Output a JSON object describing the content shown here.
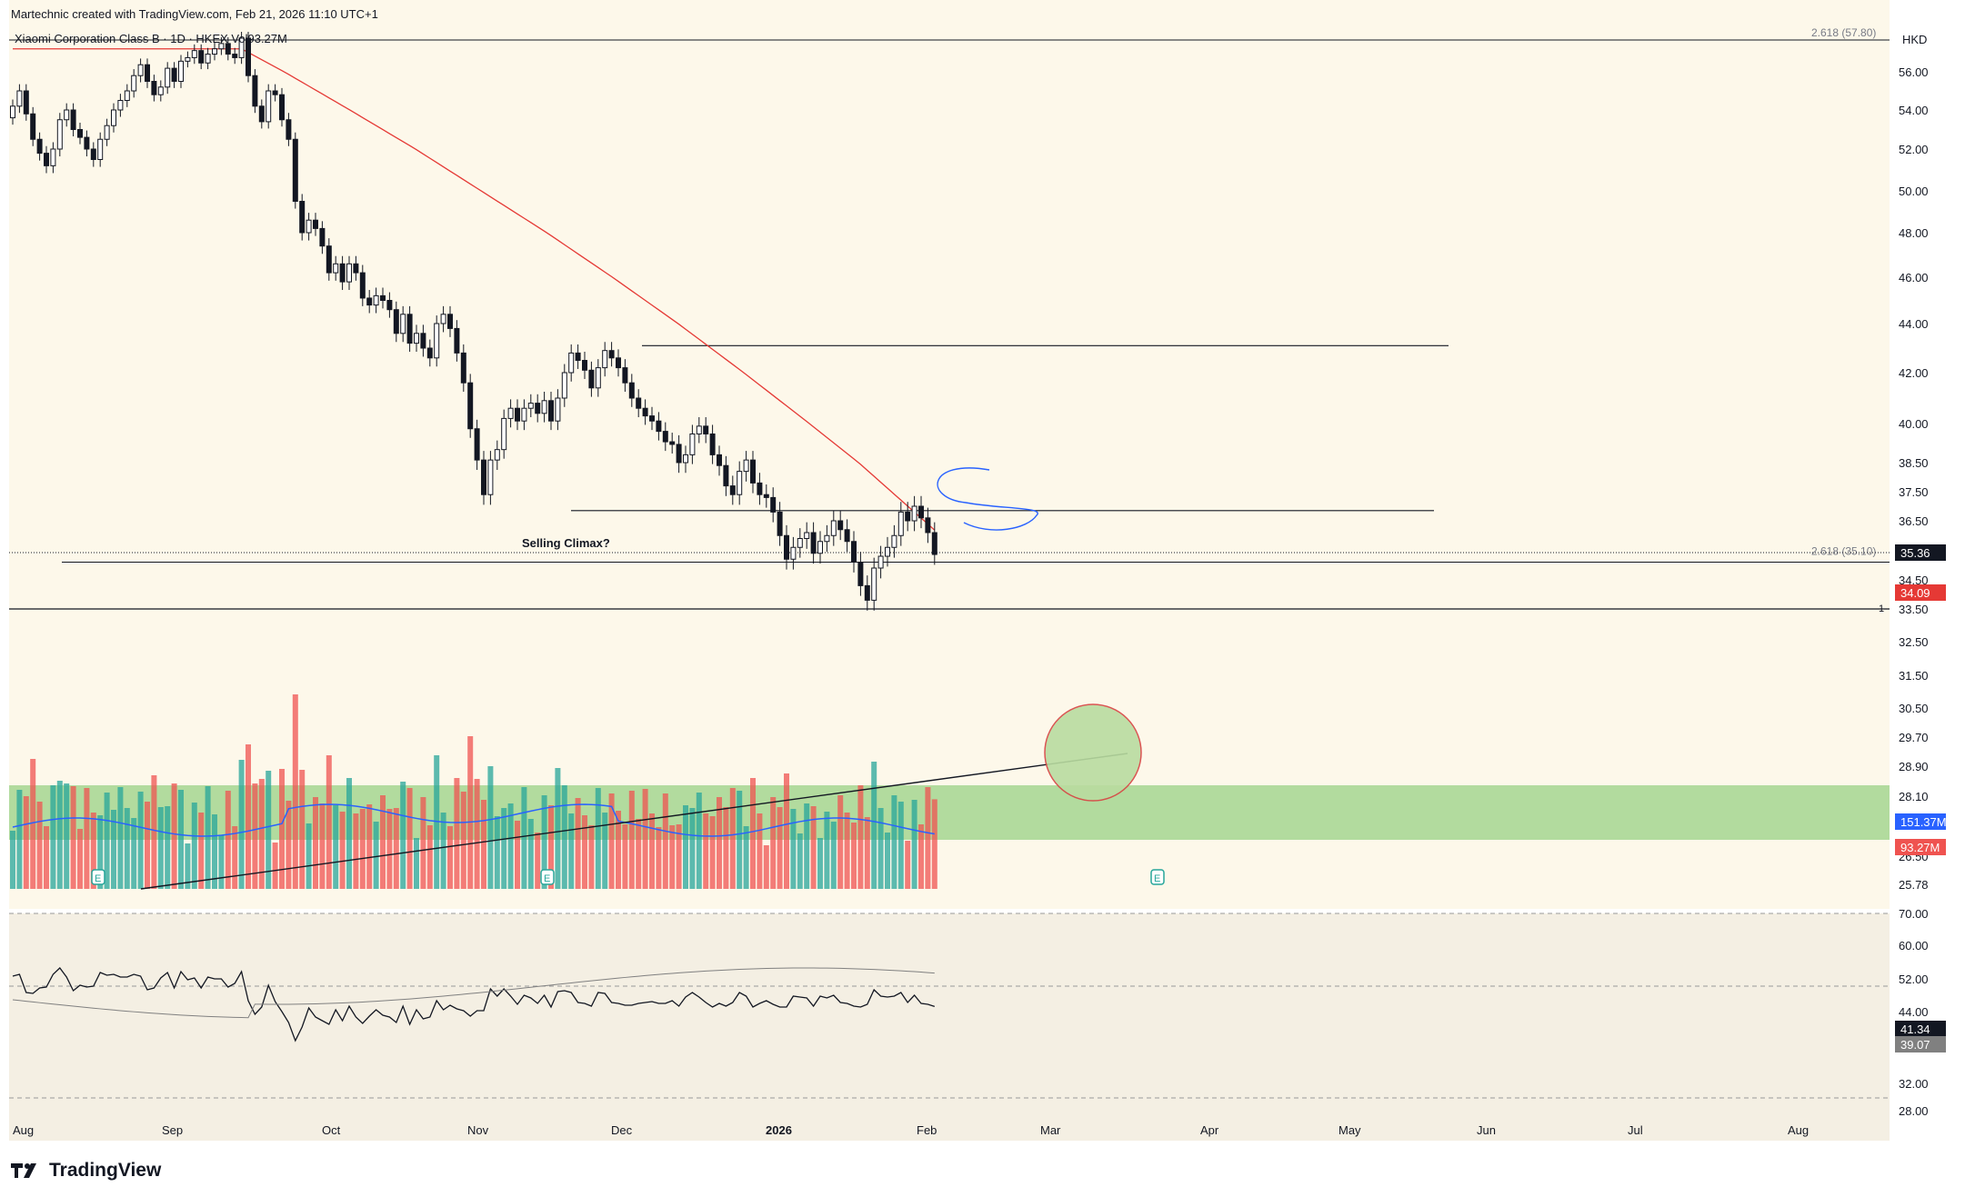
{
  "header": {
    "author_line": "Martechnic created with TradingView.com, Feb 21, 2026 11:10 UTC+1",
    "symbol_line": "Xiaomi Corporation Class B · 1D · HKEX  Vol93.27M",
    "currency": "HKD"
  },
  "brand": {
    "name": "TradingView"
  },
  "annotations": {
    "selling_climax": "Selling Climax?",
    "fib_top": "2.618 (57.80)",
    "fib_mid": "2.618 (35.10)",
    "fib_one": "1",
    "earnings": "E"
  },
  "colors": {
    "background": "#fdf8ea",
    "osc_background": "#f4efe3",
    "up": "#131722",
    "ma": "#e53935",
    "vol_up": "#26a69a",
    "vol_down": "#ef5350",
    "vol_ma": "#2962ff",
    "green_zone": "#a5d690",
    "circle": "#d84343"
  },
  "chart_data": {
    "type": "candlestick",
    "price_axis": {
      "labels": [
        "56.00",
        "54.00",
        "52.00",
        "50.00",
        "48.00",
        "46.00",
        "44.00",
        "42.00",
        "40.00",
        "38.50",
        "37.50",
        "36.50",
        "34.50",
        "33.50",
        "32.50",
        "31.50",
        "30.50",
        "29.70",
        "28.90",
        "28.10",
        "26.50",
        "25.78"
      ],
      "last_price": "35.36",
      "ma_value": "34.09",
      "vol_ma_value": "151.37M",
      "volume_value": "93.27M"
    },
    "time_axis": [
      "Aug",
      "Sep",
      "Oct",
      "Nov",
      "Dec",
      "2026",
      "Feb",
      "Mar",
      "Apr",
      "May",
      "Jun",
      "Jul",
      "Aug"
    ],
    "levels": {
      "fib_2618_top": 57.8,
      "resistance": 43.1,
      "range_top": 36.85,
      "fib_2618_mid": 35.1,
      "level_one": 33.5
    },
    "close": [
      54.2,
      55.0,
      53.8,
      52.5,
      51.8,
      51.2,
      52.0,
      53.5,
      54.0,
      53.0,
      52.6,
      52.0,
      51.5,
      52.5,
      53.2,
      54.0,
      54.5,
      55.0,
      55.8,
      56.4,
      55.5,
      54.8,
      55.2,
      56.2,
      55.5,
      56.6,
      56.8,
      57.2,
      56.5,
      57.0,
      57.3,
      57.6,
      57.0,
      56.8,
      57.9,
      55.8,
      54.2,
      53.4,
      55.0,
      54.8,
      53.5,
      52.5,
      49.5,
      48.0,
      48.6,
      48.2,
      47.4,
      46.2,
      46.6,
      45.8,
      46.6,
      46.2,
      45.1,
      44.8,
      45.2,
      45.0,
      44.6,
      43.6,
      44.4,
      43.2,
      43.6,
      43.0,
      42.6,
      44.0,
      44.4,
      43.8,
      42.8,
      41.6,
      39.8,
      38.6,
      37.4,
      38.6,
      39.0,
      40.2,
      40.6,
      40.1,
      40.6,
      40.8,
      40.4,
      40.9,
      40.1,
      41.0,
      42.0,
      42.8,
      42.5,
      42.1,
      41.4,
      42.2,
      42.9,
      42.6,
      42.2,
      41.6,
      41.0,
      40.6,
      40.3,
      40.1,
      39.7,
      39.3,
      39.2,
      38.5,
      38.8,
      39.6,
      39.9,
      39.6,
      38.8,
      38.4,
      37.7,
      37.4,
      38.2,
      38.6,
      37.8,
      37.4,
      37.3,
      36.8,
      36.0,
      35.2,
      35.6,
      35.9,
      36.1,
      35.4,
      35.8,
      36.0,
      36.5,
      36.2,
      35.8,
      35.1,
      34.3,
      33.8,
      34.9,
      35.3,
      35.6,
      36.0,
      36.8,
      36.5,
      37.0,
      36.6,
      36.1,
      35.36
    ],
    "open": [
      53.6,
      54.2,
      55.0,
      53.8,
      52.5,
      51.8,
      51.2,
      52.0,
      53.5,
      54.0,
      53.0,
      52.6,
      52.0,
      51.5,
      52.5,
      53.2,
      54.0,
      54.5,
      55.0,
      55.8,
      56.4,
      55.5,
      54.8,
      55.2,
      56.2,
      55.5,
      56.6,
      56.8,
      57.2,
      56.5,
      57.0,
      57.3,
      57.6,
      57.0,
      56.8,
      57.9,
      55.8,
      54.2,
      53.4,
      55.0,
      54.8,
      53.5,
      52.5,
      49.5,
      48.0,
      48.6,
      48.2,
      47.4,
      46.2,
      46.6,
      45.8,
      46.6,
      46.2,
      45.1,
      44.8,
      45.2,
      45.0,
      44.6,
      43.6,
      44.4,
      43.2,
      43.6,
      43.0,
      42.6,
      44.0,
      44.4,
      43.8,
      42.8,
      41.6,
      39.8,
      38.6,
      37.4,
      38.6,
      39.0,
      40.2,
      40.6,
      40.1,
      40.6,
      40.8,
      40.4,
      40.9,
      40.1,
      41.0,
      42.0,
      42.8,
      42.5,
      42.1,
      41.4,
      42.2,
      42.9,
      42.6,
      42.2,
      41.6,
      41.0,
      40.6,
      40.3,
      40.1,
      39.7,
      39.3,
      39.2,
      38.5,
      38.8,
      39.6,
      39.9,
      39.6,
      38.8,
      38.4,
      37.7,
      37.4,
      38.2,
      38.6,
      37.8,
      37.4,
      37.3,
      36.8,
      36.0,
      35.2,
      35.6,
      35.9,
      36.1,
      35.4,
      35.8,
      36.0,
      36.5,
      36.2,
      35.8,
      35.1,
      34.3,
      33.8,
      34.9,
      35.3,
      35.6,
      36.0,
      36.8,
      36.5,
      37.0,
      36.6,
      36.1
    ],
    "rsi_axis": [
      "70.00",
      "60.00",
      "52.00",
      "44.00",
      "32.00",
      "28.00"
    ],
    "rsi_value": "41.34",
    "rsi_ma_value": "39.07"
  }
}
